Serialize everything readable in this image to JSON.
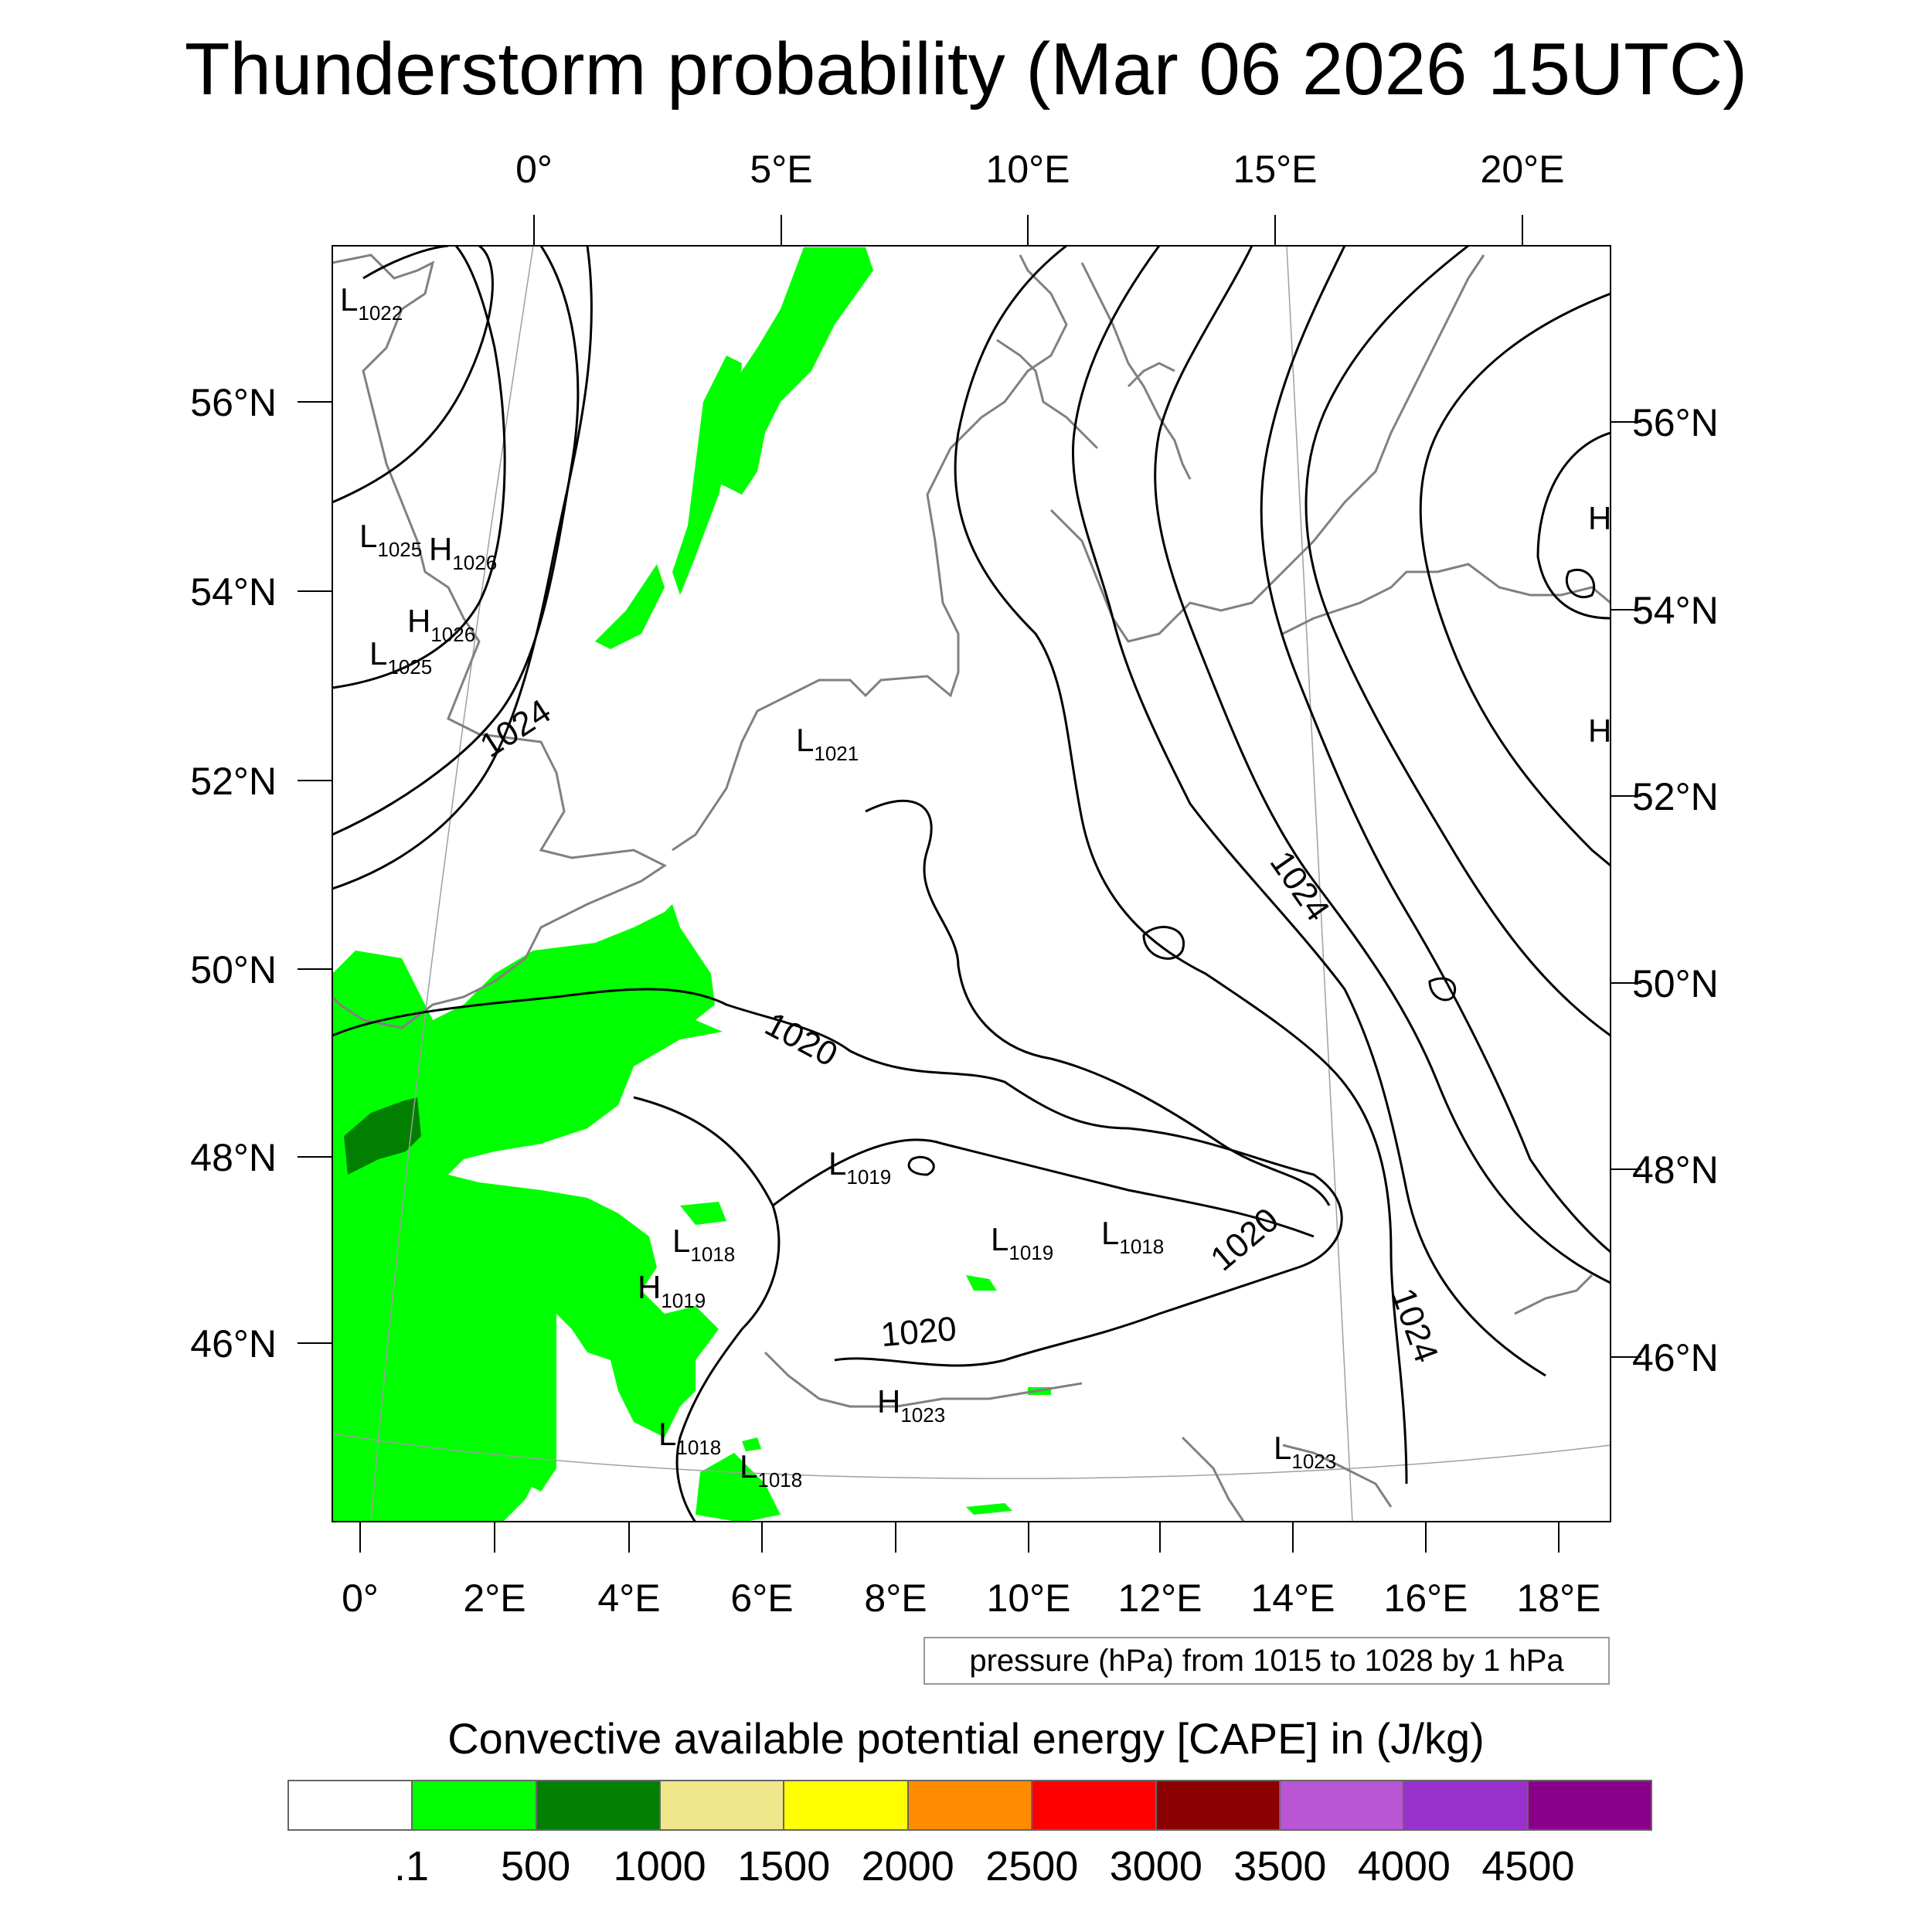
{
  "title": "Thunderstorm probability (Mar 06 2026 15UTC)",
  "top_ticks": [
    "0°",
    "5°E",
    "10°E",
    "15°E",
    "20°E"
  ],
  "bottom_ticks": [
    "0°",
    "2°E",
    "4°E",
    "6°E",
    "8°E",
    "10°E",
    "12°E",
    "14°E",
    "16°E",
    "18°E"
  ],
  "left_ticks": [
    "56°N",
    "54°N",
    "52°N",
    "50°N",
    "48°N",
    "46°N"
  ],
  "right_ticks": [
    "56°N",
    "54°N",
    "52°N",
    "50°N",
    "48°N",
    "46°N"
  ],
  "contour_labels": [
    "1024",
    "1024",
    "1024",
    "1020",
    "1020",
    "1020"
  ],
  "pressure_centers": [
    {
      "letter": "L",
      "value": "1022"
    },
    {
      "letter": "L",
      "value": "1025"
    },
    {
      "letter": "H",
      "value": "1026"
    },
    {
      "letter": "H",
      "value": "1026"
    },
    {
      "letter": "L",
      "value": "1025"
    },
    {
      "letter": "L",
      "value": "1021"
    },
    {
      "letter": "L",
      "value": "1019"
    },
    {
      "letter": "L",
      "value": "1018"
    },
    {
      "letter": "L",
      "value": "1019"
    },
    {
      "letter": "L",
      "value": "1018"
    },
    {
      "letter": "H",
      "value": "1019"
    },
    {
      "letter": "H",
      "value": "1023"
    },
    {
      "letter": "L",
      "value": "1018"
    },
    {
      "letter": "L",
      "value": "1018"
    },
    {
      "letter": "L",
      "value": "1023"
    }
  ],
  "edge_letters": [
    "H",
    "H"
  ],
  "pressure_note": "pressure (hPa) from 1015 to 1028 by 1 hPa",
  "cape": {
    "title": "Convective available potential energy [CAPE] in (J/kg)",
    "colors": [
      "#ffffff",
      "#00ff00",
      "#007f00",
      "#f0e68c",
      "#ffff00",
      "#ff8c00",
      "#ff0000",
      "#8b0000",
      "#ba55d3",
      "#9932cc",
      "#8b008b"
    ],
    "labels": [
      ".1",
      "500",
      "1000",
      "1500",
      "2000",
      "2500",
      "3000",
      "3500",
      "4000",
      "4500"
    ]
  },
  "colors": {
    "cape_light": "#00ff00",
    "cape_dark": "#007f00",
    "coastline": "#808080",
    "isobar": "#000000",
    "graticule": "#a0a0a0"
  }
}
